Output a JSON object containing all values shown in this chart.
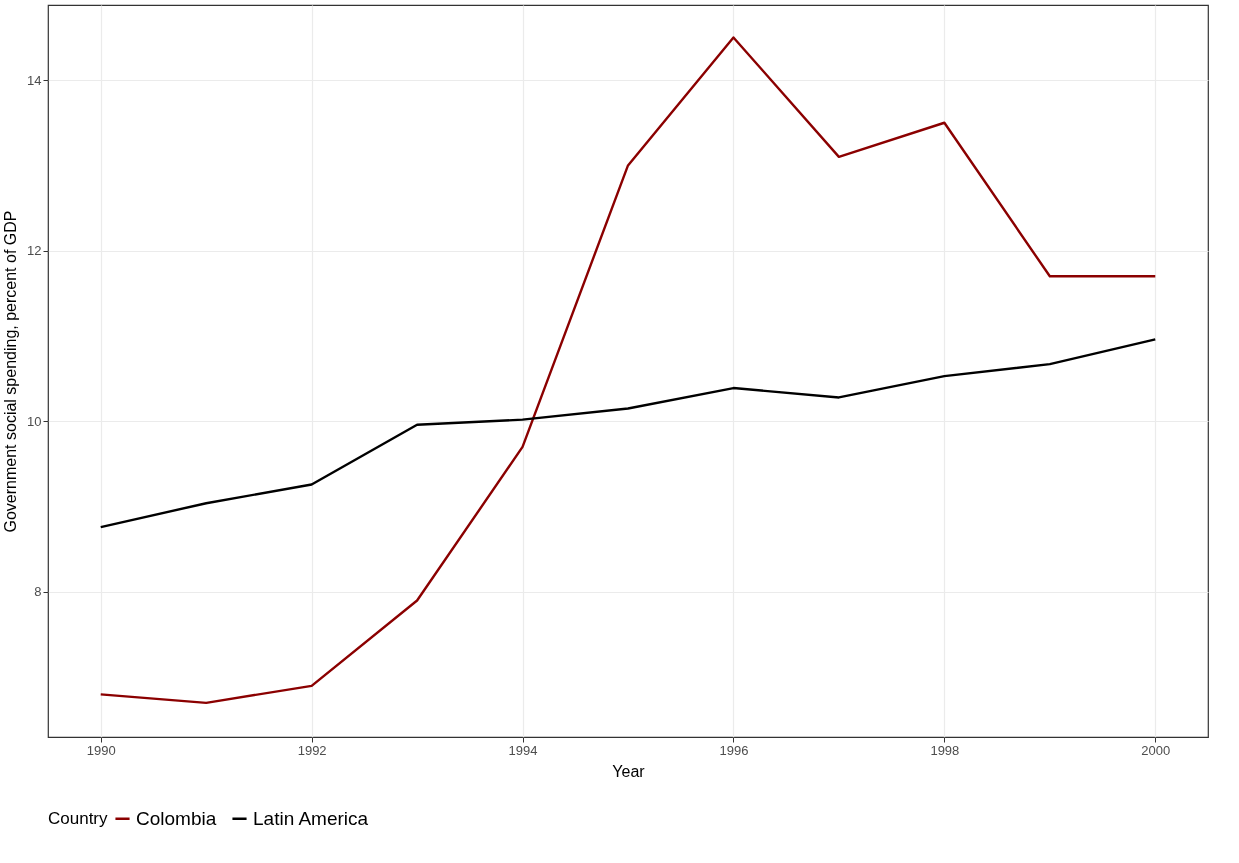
{
  "chart_data": {
    "type": "line",
    "xlabel": "Year",
    "ylabel": "Government social spending, percent of GDP",
    "legend_title": "Country",
    "x": [
      1990,
      1991,
      1992,
      1993,
      1994,
      1995,
      1996,
      1997,
      1998,
      1999,
      2000
    ],
    "series": [
      {
        "name": "Colombia",
        "color": "#8b0000",
        "values": [
          6.8,
          6.7,
          6.9,
          7.9,
          9.7,
          13.0,
          14.5,
          13.1,
          13.5,
          11.7,
          11.7
        ]
      },
      {
        "name": "Latin America",
        "color": "#000000",
        "values": [
          8.76,
          9.04,
          9.26,
          9.96,
          10.02,
          10.15,
          10.39,
          10.28,
          10.53,
          10.67,
          10.96
        ]
      }
    ],
    "xlim": [
      1989.5,
      2000.5
    ],
    "xticks": [
      1990,
      1992,
      1994,
      1996,
      1998,
      2000
    ],
    "ylim": [
      6.3,
      14.88
    ],
    "yticks": [
      8,
      10,
      12,
      14
    ],
    "grid": true,
    "legend": "bottom"
  }
}
